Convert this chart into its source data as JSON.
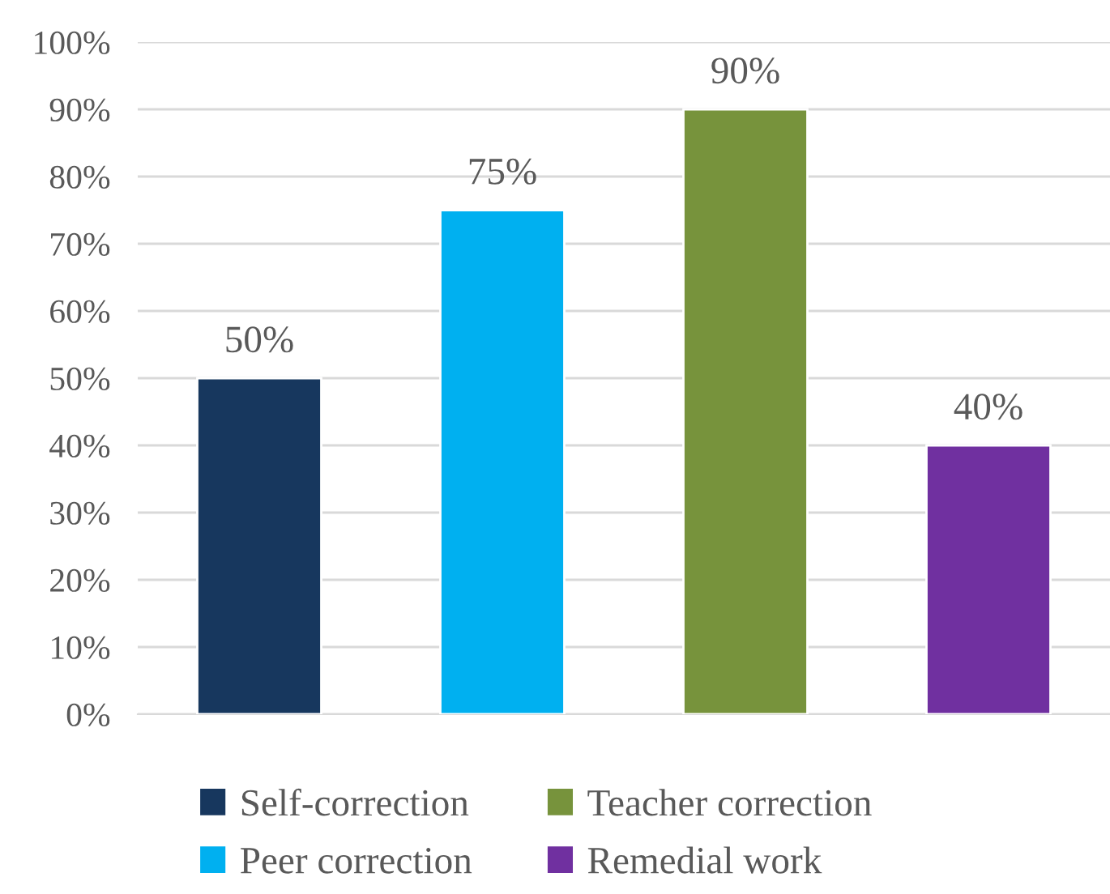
{
  "chart_data": {
    "type": "bar",
    "categories": [
      null,
      null,
      null,
      null
    ],
    "series": [
      {
        "name": "Self-correction",
        "color": "#17375e",
        "values": [
          50,
          null,
          null,
          null
        ],
        "value_labels": [
          "50%",
          null,
          null,
          null
        ]
      },
      {
        "name": "Peer correction",
        "color": "#00b0f0",
        "values": [
          null,
          75,
          null,
          null
        ],
        "value_labels": [
          null,
          "75%",
          null,
          null
        ]
      },
      {
        "name": "Teacher correction",
        "color": "#77933c",
        "values": [
          null,
          null,
          90,
          null
        ],
        "value_labels": [
          null,
          null,
          "90%",
          null
        ]
      },
      {
        "name": "Remedial work",
        "color": "#7030a0",
        "values": [
          null,
          null,
          null,
          40
        ],
        "value_labels": [
          null,
          null,
          null,
          "40%"
        ]
      }
    ],
    "ylim": [
      0,
      100
    ],
    "yticks": [
      {
        "value": 0,
        "label": "0%"
      },
      {
        "value": 10,
        "label": "10%"
      },
      {
        "value": 20,
        "label": "20%"
      },
      {
        "value": 30,
        "label": "30%"
      },
      {
        "value": 40,
        "label": "40%"
      },
      {
        "value": 50,
        "label": "50%"
      },
      {
        "value": 60,
        "label": "60%"
      },
      {
        "value": 70,
        "label": "70%"
      },
      {
        "value": 80,
        "label": "80%"
      },
      {
        "value": 90,
        "label": "90%"
      },
      {
        "value": 100,
        "label": "100%"
      }
    ],
    "grid": "y",
    "legend": "bottom"
  }
}
